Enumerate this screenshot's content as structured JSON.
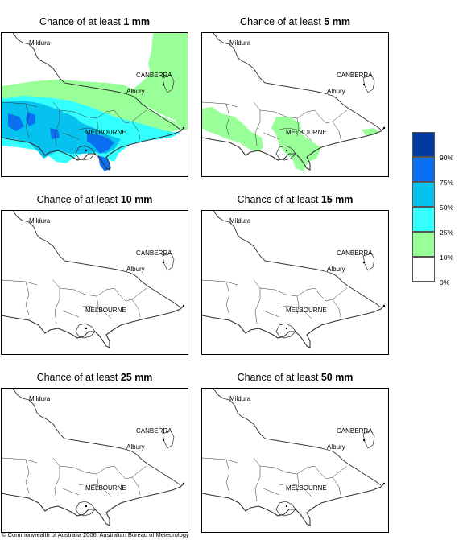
{
  "panels": [
    {
      "title_prefix": "Chance of at least ",
      "title_amount": "1 mm",
      "level": "1mm"
    },
    {
      "title_prefix": "Chance of at least ",
      "title_amount": "5 mm",
      "level": "5mm"
    },
    {
      "title_prefix": "Chance of at least ",
      "title_amount": "10 mm",
      "level": "10mm"
    },
    {
      "title_prefix": "Chance of at least ",
      "title_amount": "15 mm",
      "level": "15mm"
    },
    {
      "title_prefix": "Chance of at least ",
      "title_amount": "25 mm",
      "level": "25mm"
    },
    {
      "title_prefix": "Chance of at least ",
      "title_amount": "50 mm",
      "level": "50mm"
    }
  ],
  "map_labels": {
    "mildura": "Mildura",
    "canberra": "CANBERRA",
    "albury": "Albury",
    "melbourne": "MELBOURNE"
  },
  "legend": {
    "labels": [
      "90%",
      "75%",
      "50%",
      "25%",
      "10%",
      "0%"
    ],
    "colors": [
      "#003a9e",
      "#0a6ff0",
      "#05c2ee",
      "#33ffff",
      "#99ff99",
      "#ffffff"
    ]
  },
  "colors": {
    "prob_10_25": "#99ff99",
    "prob_25_50": "#33ffff",
    "prob_50_75": "#05c2ee",
    "prob_75_90": "#0a6ff0"
  },
  "copyright": "© Commonwealth of Australia 2006, Australian Bureau of Meteorology"
}
